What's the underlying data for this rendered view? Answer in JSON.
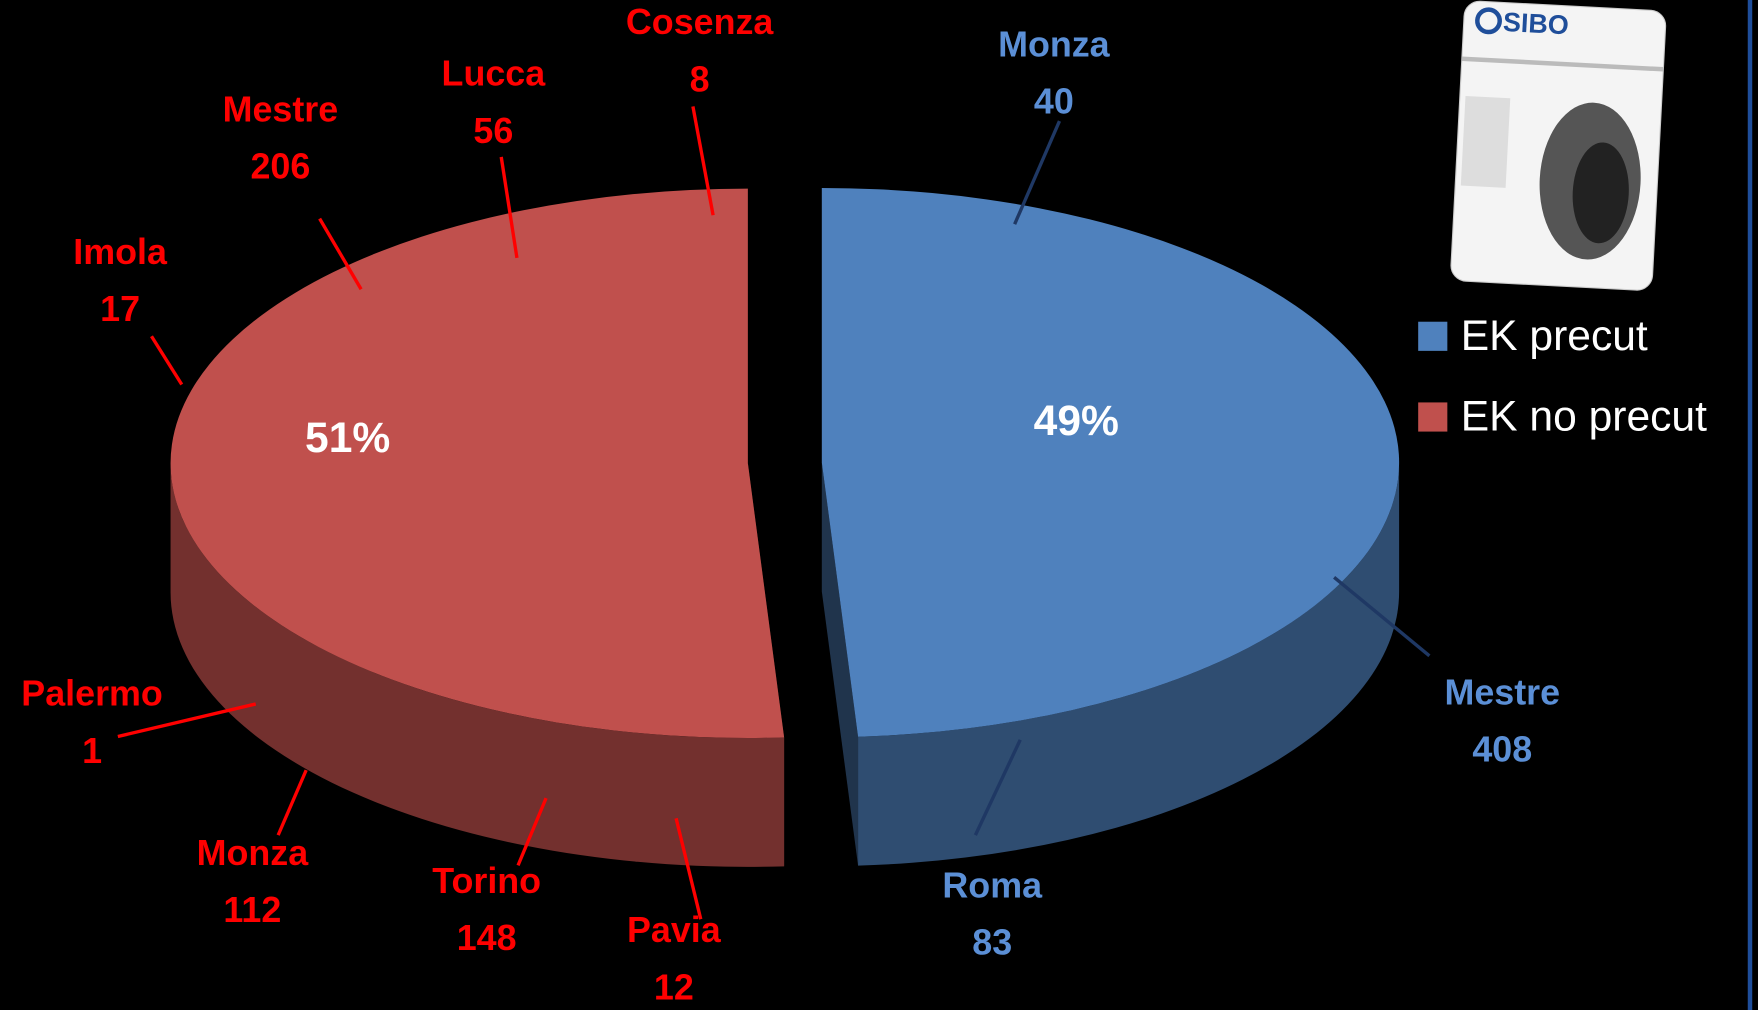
{
  "chart_data": {
    "type": "pie",
    "categories": [
      "EK precut",
      "EK no precut"
    ],
    "values": [
      49,
      51
    ],
    "value_labels": [
      "49%",
      "51%"
    ],
    "colors": [
      "#4f81bd",
      "#c0504d"
    ],
    "legend": "right",
    "breakdown": [
      [
        {
          "label": "Monza",
          "value": 40
        },
        {
          "label": "Mestre",
          "value": 408
        },
        {
          "label": "Roma",
          "value": 83
        }
      ],
      [
        {
          "label": "Cosenza",
          "value": 8
        },
        {
          "label": "Lucca",
          "value": 56
        },
        {
          "label": "Mestre",
          "value": 206
        },
        {
          "label": "Imola",
          "value": 17
        },
        {
          "label": "Palermo",
          "value": 1
        },
        {
          "label": "Monza",
          "value": 112
        },
        {
          "label": "Torino",
          "value": 148
        },
        {
          "label": "Pavia",
          "value": 12
        }
      ]
    ]
  },
  "logo": "SIBO"
}
